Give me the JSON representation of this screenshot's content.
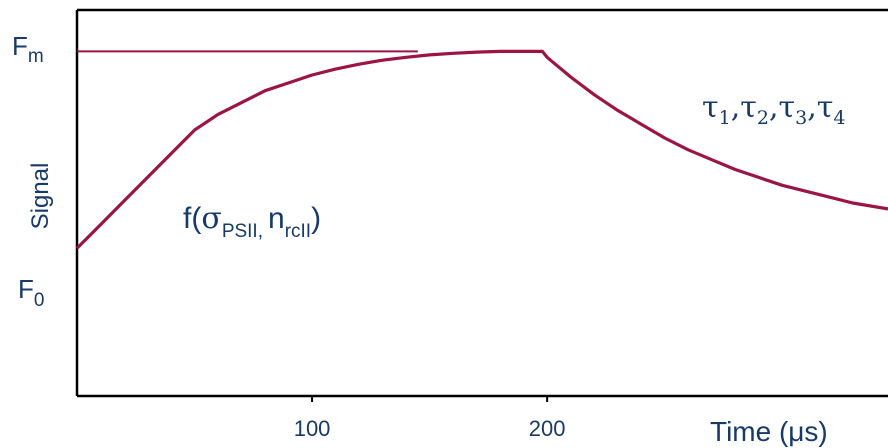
{
  "chart_data": {
    "type": "line",
    "title": "",
    "xlabel": "Time (μs)",
    "ylabel": "Signal",
    "xlim": [
      0,
      345
    ],
    "ylim": [
      -0.75,
      1.21
    ],
    "x_ticks": [
      100,
      200
    ],
    "y_ticks": [
      {
        "label_main": "F",
        "label_sub": "m",
        "value": 1.0
      },
      {
        "label_main": "F",
        "label_sub": "0",
        "value": 0.0
      }
    ],
    "series": [
      {
        "x": [
          0,
          10,
          20,
          30,
          40,
          50,
          60,
          70,
          80,
          90,
          100,
          110,
          120,
          130,
          140,
          150,
          160,
          170,
          180,
          190,
          198,
          200,
          210,
          220,
          230,
          240,
          250,
          260,
          270,
          280,
          290,
          300,
          310,
          320,
          330,
          345
        ],
        "y": [
          0.0,
          0.12,
          0.24,
          0.36,
          0.48,
          0.6,
          0.68,
          0.74,
          0.8,
          0.84,
          0.88,
          0.91,
          0.935,
          0.955,
          0.97,
          0.982,
          0.99,
          0.996,
          1.0,
          1.0,
          1.0,
          0.97,
          0.87,
          0.78,
          0.7,
          0.63,
          0.56,
          0.5,
          0.45,
          0.4,
          0.36,
          0.32,
          0.29,
          0.26,
          0.23,
          0.2
        ],
        "color": "#9c1542"
      }
    ],
    "reference_lines": [
      {
        "orientation": "horizontal",
        "y": 1.0,
        "x_start": 0,
        "x_end": 145,
        "color": "#9c1542"
      }
    ],
    "annotations": {
      "rise": {
        "prefix": "f(",
        "sigma": "σ",
        "sigma_sub": "PSII,",
        "n": "n",
        "n_sub": "rcII",
        "suffix": ")"
      },
      "decay": {
        "tau": "τ",
        "subs": [
          "1",
          "2",
          "3",
          "4"
        ],
        "sep": ","
      }
    },
    "grid": false,
    "legend": "none"
  }
}
